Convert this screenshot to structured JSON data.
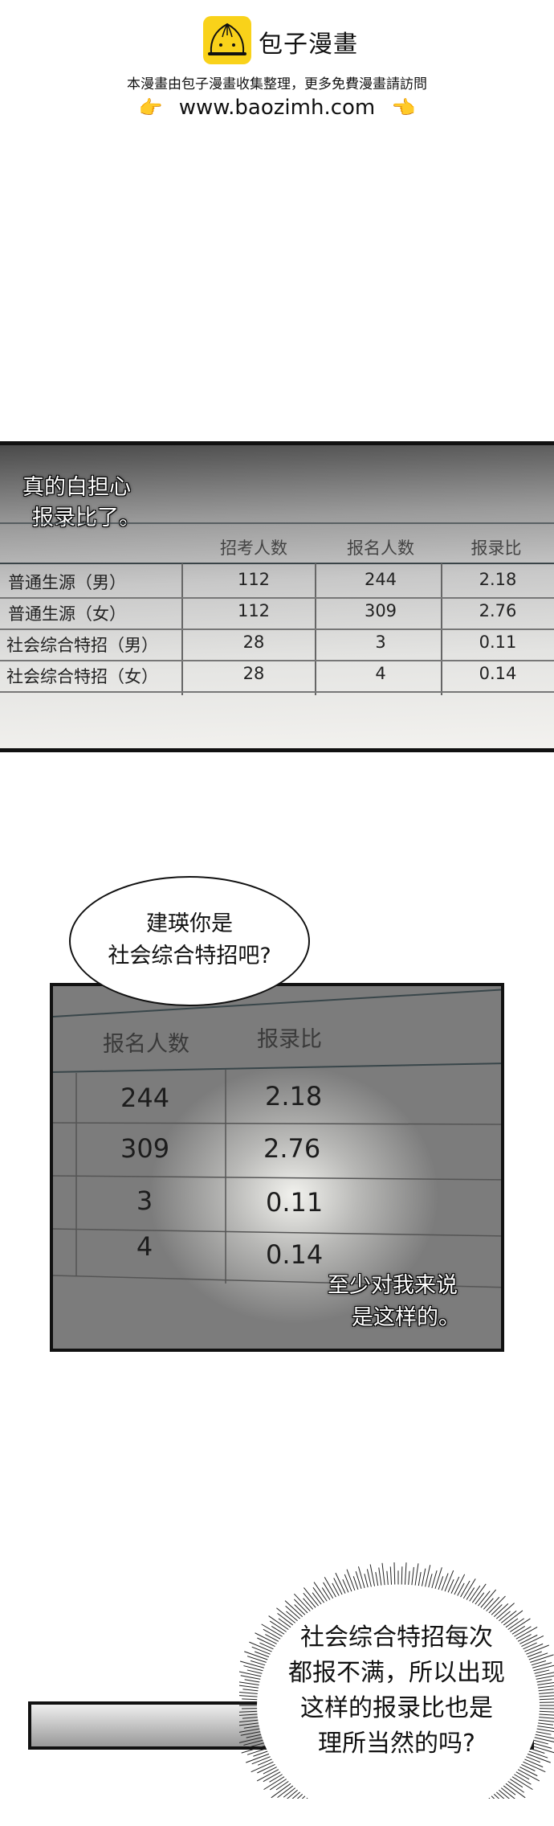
{
  "header": {
    "brand_name": "包子漫畫",
    "notice": "本漫畫由包子漫畫收集整理，更多免費漫畫請訪問",
    "url": "www.baozimh.com",
    "left_icon": "pointing-right-hand-emoji",
    "right_icon": "pointing-left-hand-emoji",
    "logo_icon": "bun-mascot-logo",
    "brand_color": "#f9d21a"
  },
  "panel1": {
    "caption_lines": [
      "真的白担心",
      "报录比了。"
    ],
    "table": {
      "columns": [
        "招考人数",
        "报名人数",
        "报录比"
      ],
      "rows": [
        {
          "label": "普通生源（男）",
          "values": [
            "112",
            "244",
            "2.18"
          ]
        },
        {
          "label": "普通生源（女）",
          "values": [
            "112",
            "309",
            "2.76"
          ]
        },
        {
          "label": "社会综合特招（男）",
          "values": [
            "28",
            "3",
            "0.11"
          ]
        },
        {
          "label": "社会综合特招（女）",
          "values": [
            "28",
            "4",
            "0.14"
          ]
        }
      ]
    }
  },
  "panel2": {
    "bubble_lines": [
      "建瑛你是",
      "社会综合特招吧?"
    ],
    "columns": [
      "报名人数",
      "报录比"
    ],
    "rows": [
      [
        "244",
        "2.18"
      ],
      [
        "309",
        "2.76"
      ],
      [
        "3",
        "0.11"
      ],
      [
        "4",
        "0.14"
      ]
    ],
    "caption_lines": [
      "至少对我来说",
      "是这样的。"
    ]
  },
  "panel3": {
    "bubble_lines": [
      "社会综合特招每次",
      "都报不满，所以出现",
      "这样的报录比也是",
      "理所当然的吗?"
    ]
  }
}
